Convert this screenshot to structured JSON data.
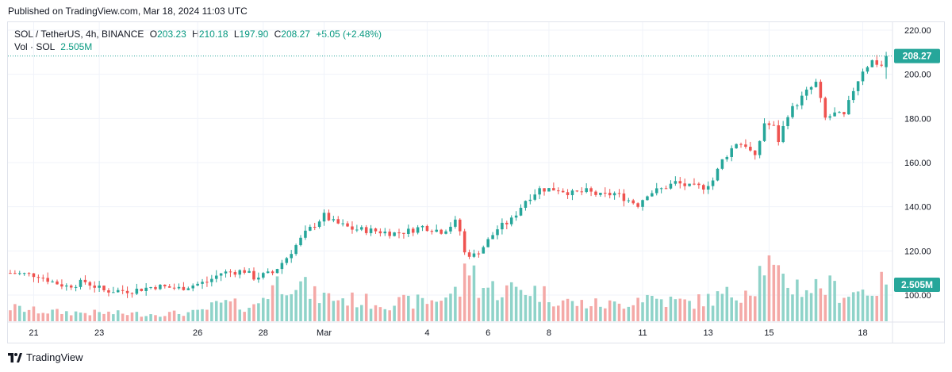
{
  "header": {
    "published": "Published on TradingView.com, Mar 18, 2024 11:03 UTC"
  },
  "legend": {
    "symbol": "SOL / TetherUS, 4h, BINANCE",
    "o_label": "O",
    "o_value": "203.23",
    "h_label": "H",
    "h_value": "210.18",
    "l_label": "L",
    "l_value": "197.90",
    "c_label": "C",
    "c_value": "208.27",
    "change": "+5.05 (+2.48%)",
    "vol_label": "Vol · SOL",
    "vol_value": "2.505M"
  },
  "footer": {
    "brand": "TradingView"
  },
  "colors": {
    "up": "#26a69a",
    "down": "#ef5350",
    "up_vol": "#8fd3c9",
    "down_vol": "#f4a9a7",
    "grid": "#f0f3fa"
  },
  "chart_data": {
    "type": "candlestick",
    "interval": "4h",
    "y_axis": {
      "ticks": [
        100,
        120,
        140,
        160,
        180,
        200,
        220
      ],
      "ylim": [
        95,
        223
      ],
      "side": "right"
    },
    "x_axis": {
      "tick_labels": [
        "21",
        "23",
        "26",
        "28",
        "Mar",
        "4",
        "6",
        "8",
        "11",
        "13",
        "15",
        "18"
      ],
      "tick_index": [
        5,
        19,
        40,
        54,
        67,
        89,
        102,
        115,
        135,
        149,
        162,
        182
      ]
    },
    "last_price": {
      "value": 208.27,
      "label": "208.27"
    },
    "last_volume": {
      "label": "2.505M"
    },
    "price_anchors": [
      [
        0,
        110
      ],
      [
        6,
        109
      ],
      [
        9,
        106
      ],
      [
        12,
        104
      ],
      [
        16,
        106
      ],
      [
        20,
        102
      ],
      [
        26,
        102
      ],
      [
        31,
        104
      ],
      [
        36,
        103
      ],
      [
        42,
        106
      ],
      [
        45,
        110
      ],
      [
        50,
        111
      ],
      [
        52,
        108
      ],
      [
        56,
        110
      ],
      [
        59,
        117
      ],
      [
        63,
        128
      ],
      [
        67,
        136
      ],
      [
        69,
        133
      ],
      [
        73,
        130
      ],
      [
        78,
        129
      ],
      [
        82,
        128
      ],
      [
        85,
        129
      ],
      [
        88,
        131
      ],
      [
        92,
        129
      ],
      [
        93,
        130
      ],
      [
        95,
        133
      ],
      [
        96,
        129
      ],
      [
        97,
        119
      ],
      [
        99,
        118
      ],
      [
        101,
        122
      ],
      [
        104,
        130
      ],
      [
        107,
        134
      ],
      [
        110,
        143
      ],
      [
        113,
        148
      ],
      [
        117,
        148
      ],
      [
        120,
        146
      ],
      [
        123,
        147
      ],
      [
        126,
        145
      ],
      [
        129,
        146
      ],
      [
        132,
        143
      ],
      [
        134,
        141
      ],
      [
        136,
        146
      ],
      [
        139,
        148
      ],
      [
        142,
        151
      ],
      [
        145,
        149
      ],
      [
        148,
        149
      ],
      [
        150,
        152
      ],
      [
        152,
        161
      ],
      [
        155,
        169
      ],
      [
        157,
        168
      ],
      [
        159,
        162
      ],
      [
        161,
        178
      ],
      [
        163,
        176
      ],
      [
        164,
        170
      ],
      [
        166,
        182
      ],
      [
        168,
        187
      ],
      [
        170,
        192
      ],
      [
        172,
        196
      ],
      [
        174,
        180
      ],
      [
        176,
        182
      ],
      [
        178,
        181
      ],
      [
        180,
        193
      ],
      [
        182,
        202
      ],
      [
        184,
        206
      ],
      [
        186,
        204
      ],
      [
        187,
        208.27
      ]
    ],
    "volume_anchors": [
      [
        0,
        2.7
      ],
      [
        5,
        2.1
      ],
      [
        10,
        1.8
      ],
      [
        20,
        1.6
      ],
      [
        30,
        1.4
      ],
      [
        40,
        1.7
      ],
      [
        45,
        3.5
      ],
      [
        52,
        2.8
      ],
      [
        56,
        7.0
      ],
      [
        60,
        8.5
      ],
      [
        65,
        5.0
      ],
      [
        70,
        4.5
      ],
      [
        80,
        3.5
      ],
      [
        90,
        4.0
      ],
      [
        96,
        6.0
      ],
      [
        98,
        11.5
      ],
      [
        100,
        7.0
      ],
      [
        105,
        6.0
      ],
      [
        110,
        6.5
      ],
      [
        115,
        5.0
      ],
      [
        120,
        3.5
      ],
      [
        130,
        3.2
      ],
      [
        135,
        5.0
      ],
      [
        140,
        4.0
      ],
      [
        145,
        3.6
      ],
      [
        150,
        4.5
      ],
      [
        155,
        5.5
      ],
      [
        159,
        7.5
      ],
      [
        161,
        12.0
      ],
      [
        164,
        8.0
      ],
      [
        170,
        6.5
      ],
      [
        174,
        7.0
      ],
      [
        178,
        5.5
      ],
      [
        182,
        6.0
      ],
      [
        187,
        7.2
      ]
    ],
    "volume_max": 14
  }
}
